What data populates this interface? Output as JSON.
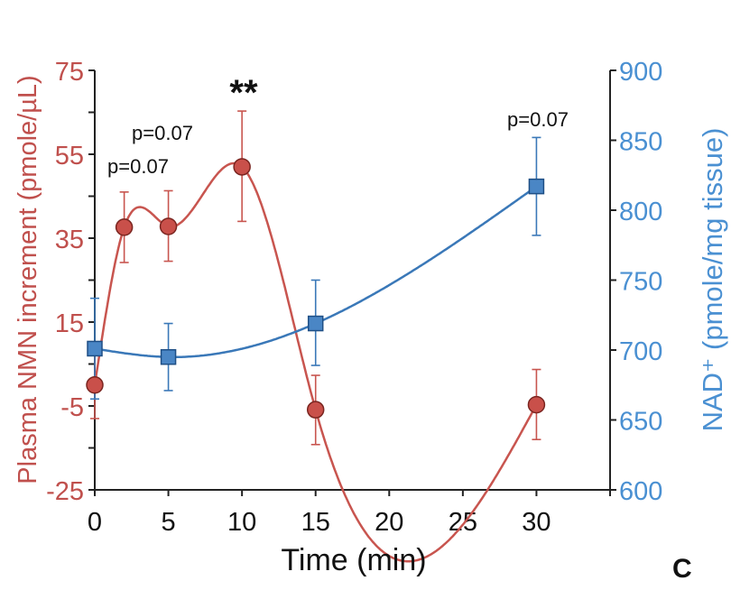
{
  "chart_data": {
    "type": "line",
    "xlabel": "Time (min)",
    "ylabel_left": "Plasma NMN increment (pmole/µL)",
    "ylabel_right": "NAD⁺ (pmole/mg tissue)",
    "xlim": [
      0,
      35
    ],
    "xticks": [
      0,
      5,
      10,
      15,
      20,
      25,
      30
    ],
    "ylim_left": [
      -25,
      75
    ],
    "yticks_left": [
      -25,
      -5,
      15,
      35,
      55,
      75
    ],
    "ylim_right": [
      600,
      900
    ],
    "yticks_right": [
      600,
      650,
      700,
      750,
      800,
      850,
      900
    ],
    "grid": false,
    "series": [
      {
        "axis": "left",
        "marker": "circle",
        "color": "#c8554f",
        "x": [
          0,
          2,
          5,
          10,
          15,
          30
        ],
        "y": [
          0,
          37.6,
          37.8,
          52,
          -5.9,
          -4.7
        ],
        "err_low": [
          -8,
          29.2,
          29.5,
          39,
          -14.2,
          -13
        ],
        "err_high": [
          8,
          46,
          46.3,
          65.3,
          2.3,
          3.7
        ]
      },
      {
        "axis": "right",
        "marker": "square",
        "color": "#3a78b8",
        "x": [
          0,
          5,
          15,
          30
        ],
        "y": [
          701,
          695,
          719,
          817
        ],
        "err_low": [
          665,
          671,
          689,
          782
        ],
        "err_high": [
          737,
          719,
          750,
          852
        ]
      }
    ],
    "annotations": [
      {
        "text": "**",
        "x": 10
      },
      {
        "text": "p=0.07",
        "x": 5
      },
      {
        "text": "p=0.07",
        "x": 2
      },
      {
        "text": "p=0.07",
        "x": 30
      }
    ],
    "colors": {
      "left_axis": "#c0504d",
      "right_axis": "#4a90d2"
    }
  },
  "panel_label": "C"
}
